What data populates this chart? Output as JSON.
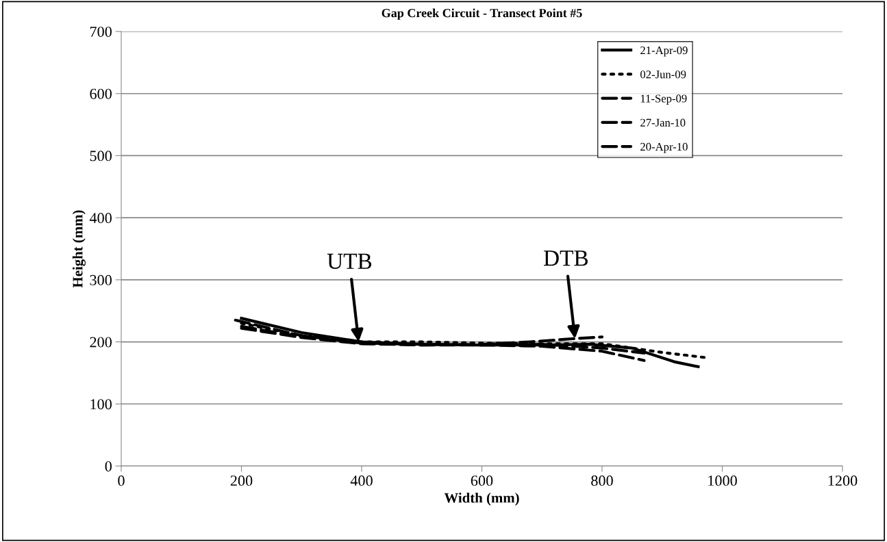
{
  "chart_data": {
    "type": "line",
    "title": "Gap Creek Circuit - Transect Point #5",
    "xlabel": "Width (mm)",
    "ylabel": "Height (mm)",
    "xlim": [
      0,
      1200
    ],
    "xticks": [
      0,
      200,
      400,
      600,
      800,
      1000,
      1200
    ],
    "ylim": [
      0,
      700
    ],
    "yticks": [
      0,
      100,
      200,
      300,
      400,
      500,
      600,
      700
    ],
    "grid": "y",
    "legend": "top right",
    "marker": "none",
    "series": [
      {
        "name": "21-Apr-09",
        "color": "#000000",
        "line_style": "solid",
        "x": [
          200,
          300,
          400,
          500,
          600,
          700,
          780,
          850,
          920,
          960
        ],
        "values": [
          238,
          215,
          200,
          196,
          195,
          195,
          196,
          190,
          168,
          160
        ]
      },
      {
        "name": "02-Jun-09",
        "color": "#000000",
        "line_style": "dotted",
        "x": [
          200,
          300,
          400,
          500,
          600,
          700,
          800,
          900,
          970
        ],
        "values": [
          230,
          210,
          200,
          200,
          198,
          197,
          197,
          183,
          175
        ]
      },
      {
        "name": "11-Sep-09",
        "color": "#000000",
        "line_style": "dashed",
        "x": [
          190,
          300,
          400,
          500,
          600,
          700,
          800,
          870
        ],
        "values": [
          235,
          210,
          198,
          196,
          195,
          196,
          190,
          182
        ]
      },
      {
        "name": "27-Jan-10",
        "color": "#000000",
        "line_style": "dashed",
        "x": [
          200,
          300,
          400,
          500,
          600,
          680,
          750,
          800
        ],
        "values": [
          225,
          208,
          198,
          195,
          196,
          200,
          205,
          208
        ]
      },
      {
        "name": "20-Apr-10",
        "color": "#000000",
        "line_style": "dashed",
        "x": [
          200,
          300,
          400,
          500,
          600,
          700,
          800,
          870
        ],
        "values": [
          222,
          207,
          197,
          195,
          195,
          193,
          185,
          170
        ]
      }
    ],
    "annotations": [
      {
        "text": "UTB",
        "x": 395,
        "y": 200
      },
      {
        "text": "DTB",
        "x": 755,
        "y": 205
      }
    ]
  }
}
